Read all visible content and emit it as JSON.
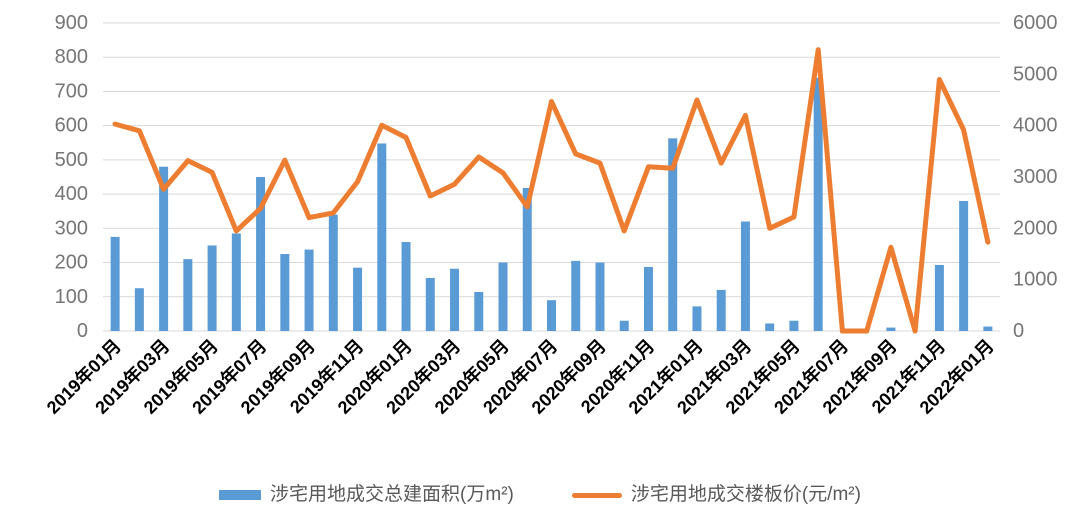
{
  "legend": {
    "bar_label": "涉宅用地成交总建面积(万m²)",
    "line_label": "涉宅用地成交楼板价(元/m²)"
  },
  "colors": {
    "bar": "#5B9BD5",
    "line": "#ED7D31",
    "gridline": "#D9D9D9",
    "axis_number_text": "#767676",
    "x_label_text": "#000000",
    "legend_text": "#595959",
    "background": "#FFFFFF"
  },
  "chart_data": {
    "type": "bar+line combo, dual y-axis",
    "title": "",
    "x_tick_labels": [
      "2019年01月",
      "2019年03月",
      "2019年05月",
      "2019年07月",
      "2019年09月",
      "2019年11月",
      "2020年01月",
      "2020年03月",
      "2020年05月",
      "2020年07月",
      "2020年09月",
      "2020年11月",
      "2021年01月",
      "2021年03月",
      "2021年05月",
      "2021年07月",
      "2021年09月",
      "2021年11月",
      "2022年01月"
    ],
    "x_tick_label_angle_deg": 45,
    "months_count": 37,
    "series": [
      {
        "name": "涉宅用地成交总建面积(万m²)",
        "type": "bar",
        "axis": "left",
        "color": "#5B9BD5",
        "values": [
          275,
          125,
          480,
          210,
          250,
          285,
          450,
          225,
          238,
          340,
          185,
          548,
          260,
          155,
          182,
          114,
          200,
          418,
          90,
          205,
          200,
          30,
          187,
          563,
          72,
          120,
          320,
          22,
          30,
          740,
          0,
          0,
          10,
          0,
          193,
          380,
          13
        ]
      },
      {
        "name": "涉宅用地成交楼板价(元/m²)",
        "type": "line",
        "axis": "right",
        "color": "#ED7D31",
        "values": [
          4030,
          3900,
          2760,
          3320,
          3090,
          1950,
          2390,
          3330,
          2210,
          2300,
          2910,
          4010,
          3770,
          2630,
          2860,
          3390,
          3080,
          2420,
          4470,
          3450,
          3270,
          1950,
          3200,
          3170,
          4500,
          3270,
          4200,
          2000,
          2220,
          5480,
          0,
          0,
          1630,
          0,
          4900,
          3920,
          1730
        ]
      }
    ],
    "left_axis": {
      "min": 0,
      "max": 900,
      "step": 100,
      "ticks": [
        900,
        800,
        700,
        600,
        500,
        400,
        300,
        200,
        100,
        0
      ]
    },
    "right_axis": {
      "min": 0,
      "max": 6000,
      "step": 1000,
      "ticks": [
        6000,
        5000,
        4000,
        3000,
        2000,
        1000,
        0
      ]
    },
    "grid": true,
    "legend_position": "bottom"
  }
}
